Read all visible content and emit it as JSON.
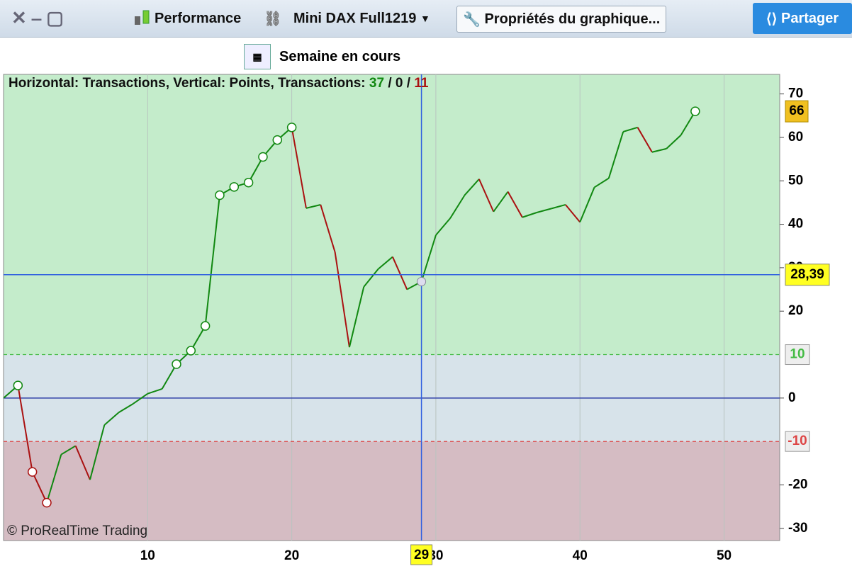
{
  "toolbar": {
    "performance": "Performance",
    "instrument": "Mini DAX Full1219",
    "properties": "Propriétés du graphique...",
    "share": "Partager",
    "period": "Semaine en cours"
  },
  "chart_data": {
    "type": "line",
    "title": "Horizontal: Transactions, Vertical: Points, Transactions:",
    "counts": {
      "winning": 37,
      "neutral": 0,
      "losing": 11,
      "separator": "/"
    },
    "copyright": "© ProRealTime Trading",
    "x": [
      0,
      1,
      2,
      3,
      4,
      5,
      6,
      7,
      8,
      9,
      10,
      11,
      12,
      13,
      14,
      15,
      16,
      17,
      18,
      19,
      20,
      21,
      22,
      23,
      24,
      25,
      26,
      27,
      28,
      29,
      30,
      31,
      32,
      33,
      34,
      35,
      36,
      37,
      38,
      39,
      40,
      41,
      42,
      43,
      44,
      45,
      46,
      47,
      48
    ],
    "values": [
      0,
      2.9,
      -17,
      -24.1,
      -13,
      -11,
      -18.8,
      -6.2,
      -3.3,
      -1.3,
      1,
      2.1,
      7.8,
      10.9,
      16.6,
      46.7,
      48.6,
      49.6,
      55.5,
      59.4,
      62.3,
      43.7,
      44.5,
      33.6,
      11.7,
      25.6,
      29.7,
      32.5,
      25,
      26.8,
      37.5,
      41.4,
      46.7,
      50.4,
      42.9,
      47.5,
      41.6,
      42.7,
      43.6,
      44.5,
      40.5,
      48.5,
      50.6,
      61.3,
      62.3,
      56.6,
      57.4,
      60.5,
      66
    ],
    "up_color": "#118811",
    "down_color": "#aa1111",
    "xlim": [
      0,
      53.86
    ],
    "ylim": [
      -32.8,
      74.5
    ],
    "xticks": [
      10,
      20,
      30,
      40,
      50
    ],
    "yticks": [
      -30,
      -20,
      0,
      20,
      30,
      40,
      50,
      60,
      70
    ],
    "levels": [
      {
        "value": 10,
        "color": "#44bb44"
      },
      {
        "value": -10,
        "color": "#dd4444"
      }
    ],
    "crosshair": {
      "x": 29,
      "y": {
        "value": 28.39,
        "label": "28,39"
      }
    },
    "grid": true
  }
}
